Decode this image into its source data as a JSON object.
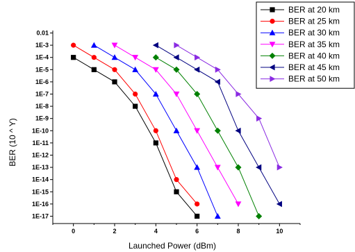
{
  "chart_data": {
    "type": "line",
    "xlabel": "Launched Power (dBm)",
    "ylabel": "BER (10 ^ Y)",
    "xlim": [
      -1,
      11
    ],
    "ylim": [
      -17.6,
      -1.8
    ],
    "x_ticks": [
      0,
      2,
      4,
      6,
      8,
      10
    ],
    "y_ticks": [
      {
        "exp": -2,
        "label": "0.01"
      },
      {
        "exp": -3,
        "label": "1E-3"
      },
      {
        "exp": -4,
        "label": "1E-4"
      },
      {
        "exp": -5,
        "label": "1E-5"
      },
      {
        "exp": -6,
        "label": "1E-6"
      },
      {
        "exp": -7,
        "label": "1E-7"
      },
      {
        "exp": -8,
        "label": "1E-8"
      },
      {
        "exp": -9,
        "label": "1E-9"
      },
      {
        "exp": -10,
        "label": "1E-10"
      },
      {
        "exp": -11,
        "label": "1E-11"
      },
      {
        "exp": -12,
        "label": "1E-12"
      },
      {
        "exp": -13,
        "label": "1E-13"
      },
      {
        "exp": -14,
        "label": "1E-14"
      },
      {
        "exp": -15,
        "label": "1E-15"
      },
      {
        "exp": -16,
        "label": "1E-16"
      },
      {
        "exp": -17,
        "label": "1E-17"
      }
    ],
    "grid": false,
    "legend_position": "top-right",
    "series": [
      {
        "name": "BER at 20 km",
        "color": "#000000",
        "marker": "square",
        "points": [
          [
            0,
            -4
          ],
          [
            1,
            -5
          ],
          [
            2,
            -6
          ],
          [
            3,
            -8
          ],
          [
            4,
            -11
          ],
          [
            5,
            -15
          ],
          [
            6,
            -17
          ]
        ]
      },
      {
        "name": "BER at 25 km",
        "color": "#ff0000",
        "marker": "circle",
        "points": [
          [
            0,
            -3
          ],
          [
            1,
            -4
          ],
          [
            2,
            -5
          ],
          [
            3,
            -7
          ],
          [
            4,
            -10
          ],
          [
            5,
            -14
          ],
          [
            6,
            -16
          ]
        ]
      },
      {
        "name": "BER at 30 km",
        "color": "#0000ff",
        "marker": "triangle-up",
        "points": [
          [
            1,
            -3
          ],
          [
            2,
            -4
          ],
          [
            3,
            -5
          ],
          [
            4,
            -7
          ],
          [
            5,
            -10
          ],
          [
            6,
            -13
          ],
          [
            7,
            -17
          ]
        ]
      },
      {
        "name": "BER at 35 km",
        "color": "#ff00ff",
        "marker": "triangle-down",
        "points": [
          [
            2,
            -3
          ],
          [
            3,
            -4
          ],
          [
            4,
            -5
          ],
          [
            5,
            -7
          ],
          [
            6,
            -10
          ],
          [
            7,
            -13
          ],
          [
            8,
            -16
          ]
        ]
      },
      {
        "name": "BER at 40 km",
        "color": "#008000",
        "marker": "diamond",
        "points": [
          [
            4,
            -4
          ],
          [
            5,
            -5
          ],
          [
            6,
            -7
          ],
          [
            7,
            -10
          ],
          [
            8,
            -13
          ],
          [
            9,
            -17
          ]
        ]
      },
      {
        "name": "BER at 45 km",
        "color": "#000080",
        "marker": "triangle-left",
        "points": [
          [
            4,
            -3
          ],
          [
            5,
            -4
          ],
          [
            6,
            -5
          ],
          [
            7,
            -6
          ],
          [
            8,
            -10
          ],
          [
            9,
            -13
          ],
          [
            10,
            -16
          ]
        ]
      },
      {
        "name": "BER at 50 km",
        "color": "#8a2be2",
        "marker": "triangle-right",
        "points": [
          [
            5,
            -3
          ],
          [
            6,
            -4
          ],
          [
            7,
            -5
          ],
          [
            8,
            -7
          ],
          [
            9,
            -9
          ],
          [
            10,
            -13
          ]
        ]
      }
    ]
  }
}
